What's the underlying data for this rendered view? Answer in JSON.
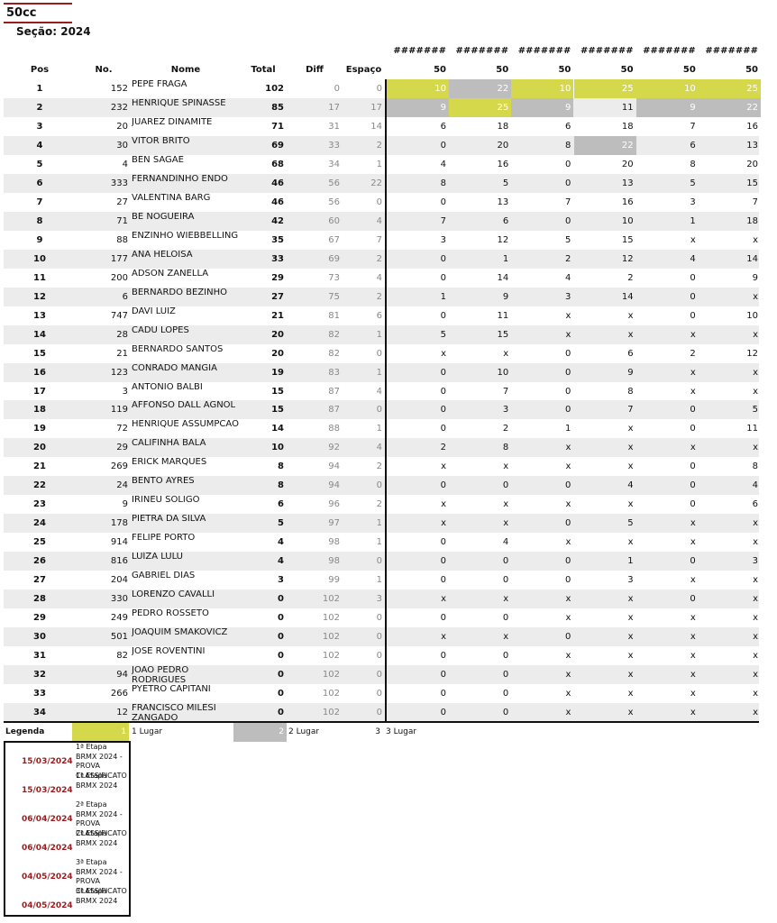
{
  "header": {
    "title": "50cc",
    "subtitle": "Seção: 2024"
  },
  "table": {
    "columns": [
      "Pos",
      "No.",
      "Nome",
      "Total",
      "Diff",
      "Espaço"
    ],
    "races": [
      {
        "name": "#######",
        "points": 50
      },
      {
        "name": "#######",
        "points": 50
      },
      {
        "name": "#######",
        "points": 50
      },
      {
        "name": "#######",
        "points": 50
      },
      {
        "name": "#######",
        "points": 50
      },
      {
        "name": "#######",
        "points": 50
      }
    ],
    "rows": [
      {
        "cells": [
          1,
          152,
          "PEPE FRAGA",
          102,
          0,
          0,
          10,
          22,
          10,
          25,
          10,
          25
        ],
        "places": [
          1,
          2,
          1,
          1,
          1,
          1
        ]
      },
      {
        "cells": [
          2,
          232,
          "HENRIQUE SPINASSE",
          85,
          17,
          17,
          9,
          25,
          9,
          11,
          9,
          22
        ],
        "places": [
          2,
          1,
          2,
          null,
          2,
          2
        ]
      },
      {
        "cells": [
          3,
          20,
          "JUAREZ DINAMITE",
          71,
          31,
          14,
          6,
          18,
          6,
          18,
          7,
          16
        ]
      },
      {
        "cells": [
          4,
          30,
          "VITOR BRITO",
          69,
          33,
          2,
          0,
          20,
          8,
          22,
          6,
          13
        ],
        "places": [
          null,
          null,
          null,
          2,
          null,
          null
        ]
      },
      {
        "cells": [
          5,
          4,
          "BEN SAGAE",
          68,
          34,
          1,
          4,
          16,
          0,
          20,
          8,
          20
        ]
      },
      {
        "cells": [
          6,
          333,
          "FERNANDINHO ENDO",
          46,
          56,
          22,
          8,
          5,
          0,
          13,
          5,
          15
        ]
      },
      {
        "cells": [
          7,
          27,
          "VALENTINA BARG",
          46,
          56,
          0,
          0,
          13,
          7,
          16,
          3,
          7
        ]
      },
      {
        "cells": [
          8,
          71,
          "BE NOGUEIRA",
          42,
          60,
          4,
          7,
          6,
          0,
          10,
          1,
          18
        ]
      },
      {
        "cells": [
          9,
          88,
          "ENZINHO WIEBBELLING",
          35,
          67,
          7,
          3,
          12,
          5,
          15,
          "x",
          "x"
        ]
      },
      {
        "cells": [
          10,
          177,
          "ANA HELOISA",
          33,
          69,
          2,
          0,
          1,
          2,
          12,
          4,
          14
        ]
      },
      {
        "cells": [
          11,
          200,
          "ADSON ZANELLA",
          29,
          73,
          4,
          0,
          14,
          4,
          2,
          0,
          9
        ]
      },
      {
        "cells": [
          12,
          6,
          "BERNARDO BEZINHO",
          27,
          75,
          2,
          1,
          9,
          3,
          14,
          0,
          "x"
        ]
      },
      {
        "cells": [
          13,
          747,
          "DAVI LUIZ",
          21,
          81,
          6,
          0,
          11,
          "x",
          "x",
          0,
          10
        ]
      },
      {
        "cells": [
          14,
          28,
          "CADU LOPES",
          20,
          82,
          1,
          5,
          15,
          "x",
          "x",
          "x",
          "x"
        ]
      },
      {
        "cells": [
          15,
          21,
          "BERNARDO SANTOS",
          20,
          82,
          0,
          "x",
          "x",
          0,
          6,
          2,
          12
        ]
      },
      {
        "cells": [
          16,
          123,
          "CONRADO MANGIA",
          19,
          83,
          1,
          0,
          10,
          0,
          9,
          "x",
          "x"
        ]
      },
      {
        "cells": [
          17,
          3,
          "ANTONIO BALBI",
          15,
          87,
          4,
          0,
          7,
          0,
          8,
          "x",
          "x"
        ]
      },
      {
        "cells": [
          18,
          119,
          "AFFONSO DALL AGNOL",
          15,
          87,
          0,
          0,
          3,
          0,
          7,
          0,
          5
        ]
      },
      {
        "cells": [
          19,
          72,
          "HENRIQUE ASSUMPCAO",
          14,
          88,
          1,
          0,
          2,
          1,
          "x",
          0,
          11
        ]
      },
      {
        "cells": [
          20,
          29,
          "CALIFINHA BALA",
          10,
          92,
          4,
          2,
          8,
          "x",
          "x",
          "x",
          "x"
        ]
      },
      {
        "cells": [
          21,
          269,
          "ERICK MARQUES",
          8,
          94,
          2,
          "x",
          "x",
          "x",
          "x",
          0,
          8
        ]
      },
      {
        "cells": [
          22,
          24,
          "BENTO AYRES",
          8,
          94,
          0,
          0,
          0,
          0,
          4,
          0,
          4
        ]
      },
      {
        "cells": [
          23,
          9,
          "IRINEU SOLIGO",
          6,
          96,
          2,
          "x",
          "x",
          "x",
          "x",
          0,
          6
        ]
      },
      {
        "cells": [
          24,
          178,
          "PIETRA DA SILVA",
          5,
          97,
          1,
          "x",
          "x",
          0,
          5,
          "x",
          "x"
        ]
      },
      {
        "cells": [
          25,
          914,
          "FELIPE PORTO",
          4,
          98,
          1,
          0,
          4,
          "x",
          "x",
          "x",
          "x"
        ]
      },
      {
        "cells": [
          26,
          816,
          "LUÍZA LULU",
          4,
          98,
          0,
          0,
          0,
          0,
          1,
          0,
          3
        ]
      },
      {
        "cells": [
          27,
          204,
          "GABRIEL DIAS",
          3,
          99,
          1,
          0,
          0,
          0,
          3,
          "x",
          "x"
        ]
      },
      {
        "cells": [
          28,
          330,
          "LORENZO CAVALLI",
          0,
          102,
          3,
          "x",
          "x",
          "x",
          "x",
          0,
          "x"
        ]
      },
      {
        "cells": [
          29,
          249,
          "PEDRO ROSSETO",
          0,
          102,
          0,
          0,
          0,
          "x",
          "x",
          "x",
          "x"
        ]
      },
      {
        "cells": [
          30,
          501,
          "JOAQUIM SMAKOVICZ",
          0,
          102,
          0,
          "x",
          "x",
          0,
          "x",
          "x",
          "x"
        ]
      },
      {
        "cells": [
          31,
          82,
          "JOSE ROVENTINI",
          0,
          102,
          0,
          0,
          0,
          "x",
          "x",
          "x",
          "x"
        ]
      },
      {
        "cells": [
          32,
          94,
          "JOAO PEDRO RODRIGUES",
          0,
          102,
          0,
          0,
          0,
          "x",
          "x",
          "x",
          "x"
        ]
      },
      {
        "cells": [
          33,
          266,
          "PYETRO CAPITANI",
          0,
          102,
          0,
          0,
          0,
          "x",
          "x",
          "x",
          "x"
        ]
      },
      {
        "cells": [
          34,
          12,
          "FRANCISCO MILESI ZANGADO",
          0,
          102,
          0,
          0,
          0,
          "x",
          "x",
          "x",
          "x"
        ]
      }
    ]
  },
  "legend": {
    "title": "Legenda",
    "items": [
      {
        "place": 1,
        "label": "1 Lugar",
        "color": "#d6d84b"
      },
      {
        "place": 2,
        "label": "2 Lugar",
        "color": "#bdbdbd"
      },
      {
        "place": 3,
        "label": "3 Lugar",
        "color": "#ffffff"
      }
    ]
  },
  "events": [
    {
      "date": "15/03/2024",
      "name": "1ª Etapa BRMX 2024 - PROVA CLASSIFICATO"
    },
    {
      "date": "15/03/2024",
      "name": "1ª Etapa BRMX 2024"
    },
    {
      "date": "06/04/2024",
      "name": "2ª Etapa BRMX 2024 - PROVA CLASSIFICATO"
    },
    {
      "date": "06/04/2024",
      "name": "2ª Etapa BRMX 2024"
    },
    {
      "date": "04/05/2024",
      "name": "3ª Etapa BRMX 2024 - PROVA CLASSIFICATO"
    },
    {
      "date": "04/05/2024",
      "name": "3ª Etapa BRMX 2024"
    }
  ]
}
